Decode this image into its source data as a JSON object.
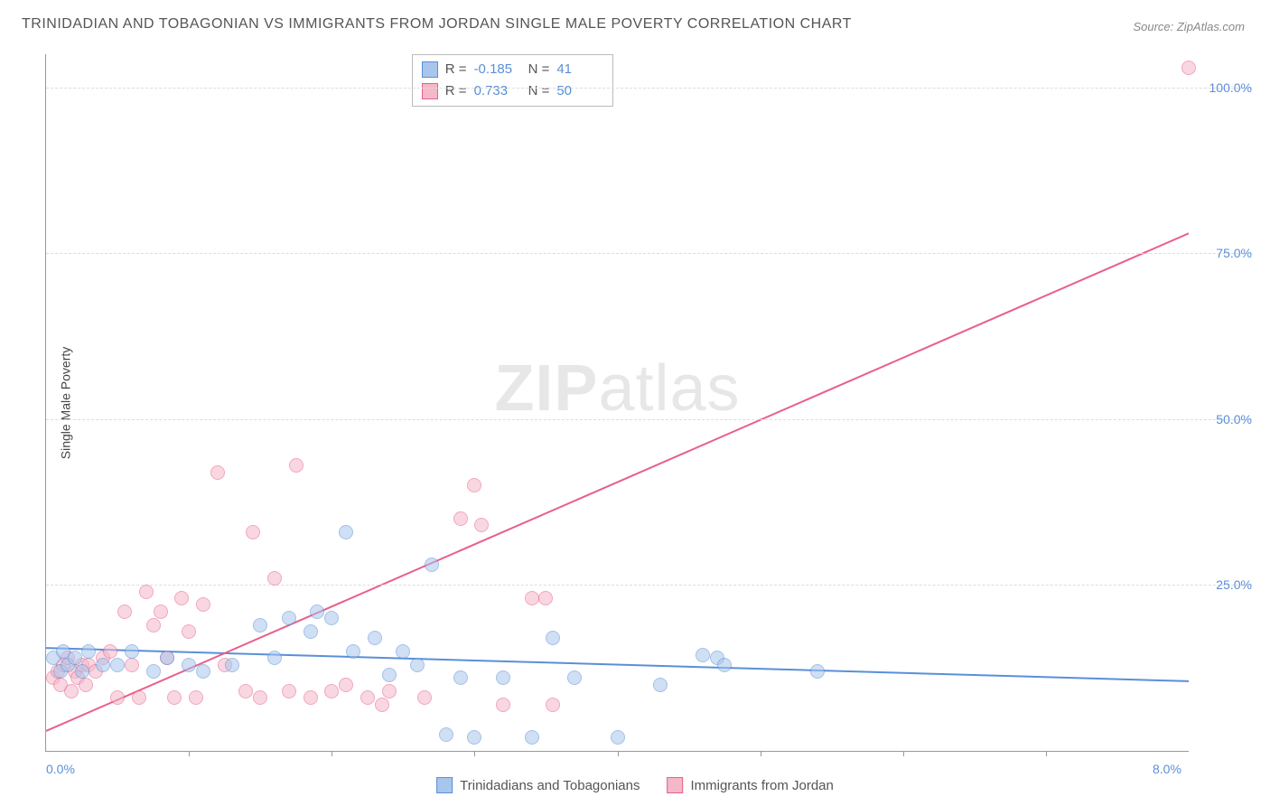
{
  "title": "TRINIDADIAN AND TOBAGONIAN VS IMMIGRANTS FROM JORDAN SINGLE MALE POVERTY CORRELATION CHART",
  "source_prefix": "Source: ",
  "source": "ZipAtlas.com",
  "y_axis_label": "Single Male Poverty",
  "watermark_bold": "ZIP",
  "watermark_rest": "atlas",
  "chart": {
    "type": "scatter",
    "xlim": [
      0,
      8
    ],
    "ylim": [
      0,
      105
    ],
    "x_ticks_minor": [
      1,
      2,
      3,
      4,
      5,
      6,
      7
    ],
    "x_tick_labels": [
      {
        "v": 0,
        "label": "0.0%"
      },
      {
        "v": 8,
        "label": "8.0%"
      }
    ],
    "y_grid": [
      25,
      50,
      75,
      100
    ],
    "y_tick_labels": [
      {
        "v": 25,
        "label": "25.0%"
      },
      {
        "v": 50,
        "label": "50.0%"
      },
      {
        "v": 75,
        "label": "75.0%"
      },
      {
        "v": 100,
        "label": "100.0%"
      }
    ],
    "background_color": "#ffffff",
    "grid_color": "#dddddd",
    "axis_color": "#999999",
    "marker_radius": 8,
    "marker_opacity": 0.55,
    "line_width": 2,
    "series": [
      {
        "name": "Trinidadians and Tobagonians",
        "color_fill": "#a8c6ec",
        "color_stroke": "#5a8fd8",
        "R": "-0.185",
        "N": "41",
        "trend": {
          "x1": 0,
          "y1": 15.5,
          "x2": 8,
          "y2": 10.5
        },
        "points": [
          [
            0.05,
            14
          ],
          [
            0.1,
            12
          ],
          [
            0.12,
            15
          ],
          [
            0.15,
            13
          ],
          [
            0.2,
            14
          ],
          [
            0.25,
            12
          ],
          [
            0.3,
            15
          ],
          [
            0.4,
            13
          ],
          [
            0.5,
            13
          ],
          [
            0.6,
            15
          ],
          [
            0.75,
            12
          ],
          [
            0.85,
            14
          ],
          [
            1.0,
            13
          ],
          [
            1.1,
            12
          ],
          [
            1.3,
            13
          ],
          [
            1.5,
            19
          ],
          [
            1.6,
            14
          ],
          [
            1.7,
            20
          ],
          [
            1.85,
            18
          ],
          [
            1.9,
            21
          ],
          [
            2.0,
            20
          ],
          [
            2.1,
            33
          ],
          [
            2.15,
            15
          ],
          [
            2.3,
            17
          ],
          [
            2.4,
            11.5
          ],
          [
            2.5,
            15
          ],
          [
            2.6,
            13
          ],
          [
            2.7,
            28
          ],
          [
            2.8,
            2.5
          ],
          [
            2.9,
            11
          ],
          [
            3.0,
            2
          ],
          [
            3.2,
            11
          ],
          [
            3.4,
            2
          ],
          [
            3.55,
            17
          ],
          [
            3.7,
            11
          ],
          [
            4.0,
            2
          ],
          [
            4.3,
            10
          ],
          [
            4.6,
            14.5
          ],
          [
            4.7,
            14
          ],
          [
            4.75,
            13
          ],
          [
            5.4,
            12
          ]
        ]
      },
      {
        "name": "Immigrants from Jordan",
        "color_fill": "#f4b8c9",
        "color_stroke": "#e85f8b",
        "R": "0.733",
        "N": "50",
        "trend": {
          "x1": 0,
          "y1": 3,
          "x2": 8,
          "y2": 78
        },
        "points": [
          [
            0.05,
            11
          ],
          [
            0.08,
            12
          ],
          [
            0.1,
            10
          ],
          [
            0.12,
            13
          ],
          [
            0.15,
            14
          ],
          [
            0.18,
            9
          ],
          [
            0.2,
            12
          ],
          [
            0.22,
            11
          ],
          [
            0.25,
            13
          ],
          [
            0.28,
            10
          ],
          [
            0.3,
            13
          ],
          [
            0.35,
            12
          ],
          [
            0.4,
            14
          ],
          [
            0.45,
            15
          ],
          [
            0.5,
            8
          ],
          [
            0.55,
            21
          ],
          [
            0.6,
            13
          ],
          [
            0.65,
            8
          ],
          [
            0.7,
            24
          ],
          [
            0.75,
            19
          ],
          [
            0.8,
            21
          ],
          [
            0.85,
            14
          ],
          [
            0.9,
            8
          ],
          [
            0.95,
            23
          ],
          [
            1.0,
            18
          ],
          [
            1.05,
            8
          ],
          [
            1.1,
            22
          ],
          [
            1.2,
            42
          ],
          [
            1.25,
            13
          ],
          [
            1.4,
            9
          ],
          [
            1.45,
            33
          ],
          [
            1.5,
            8
          ],
          [
            1.6,
            26
          ],
          [
            1.7,
            9
          ],
          [
            1.75,
            43
          ],
          [
            1.85,
            8
          ],
          [
            2.0,
            9
          ],
          [
            2.1,
            10
          ],
          [
            2.25,
            8
          ],
          [
            2.35,
            7
          ],
          [
            2.4,
            9
          ],
          [
            2.65,
            8
          ],
          [
            2.9,
            35
          ],
          [
            3.0,
            40
          ],
          [
            3.05,
            34
          ],
          [
            3.2,
            7
          ],
          [
            3.4,
            23
          ],
          [
            3.5,
            23
          ],
          [
            3.55,
            7
          ],
          [
            8.0,
            103
          ]
        ]
      }
    ]
  },
  "stats_box": {
    "R_label": "R =",
    "N_label": "N ="
  },
  "legend": {
    "series1": "Trinidadians and Tobagonians",
    "series2": "Immigrants from Jordan"
  }
}
